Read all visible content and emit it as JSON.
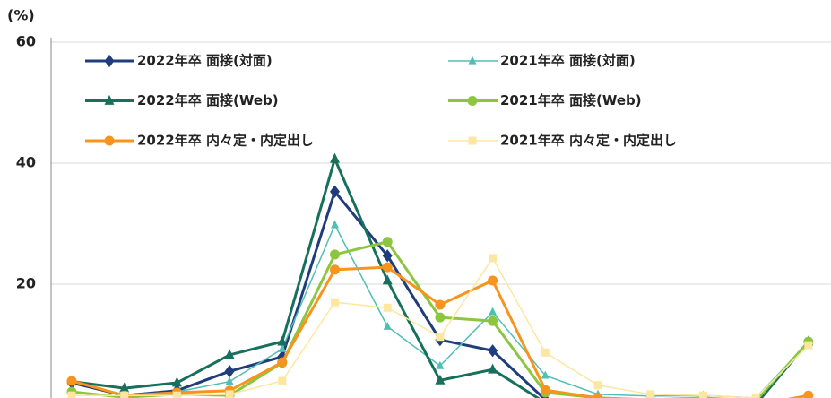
{
  "chart_data": {
    "type": "line",
    "y_label": "(%)",
    "categories": [
      null,
      null,
      null,
      null,
      null,
      null,
      null,
      null,
      null,
      null,
      null,
      null,
      null,
      null,
      null
    ],
    "ylim": [
      0,
      60
    ],
    "yticks": [
      20,
      40,
      60
    ],
    "grid": true,
    "legend": "top",
    "series": [
      {
        "name": "2022年卒 面接(対面)",
        "color": "#1f3d7a",
        "marker": "diamond",
        "width": 3,
        "values": [
          3.7,
          1.6,
          2.4,
          5.6,
          8,
          35.3,
          24.7,
          10.8,
          9,
          0.9,
          0.5,
          0.3,
          0.2,
          0.1,
          0.1
        ]
      },
      {
        "name": "2021年卒 面接(対面)",
        "color": "#4fbfb6",
        "marker": "triangle",
        "width": 1.5,
        "values": [
          1.6,
          1.6,
          2.2,
          3.9,
          9.3,
          29.8,
          13,
          6.5,
          15.4,
          4.9,
          1.8,
          1.5,
          1.6,
          1.2,
          10.4
        ]
      },
      {
        "name": "2022年卒 面接(Web)",
        "color": "#17705c",
        "marker": "triangle",
        "width": 3,
        "values": [
          3.9,
          2.8,
          3.7,
          8.3,
          10.5,
          40.7,
          20.6,
          4.1,
          5.9,
          0.4,
          0.3,
          0.3,
          0.4,
          0.1,
          10.5
        ]
      },
      {
        "name": "2021年卒 面接(Web)",
        "color": "#8cc63f",
        "marker": "circle",
        "width": 3,
        "values": [
          2.2,
          1.3,
          1.8,
          1.6,
          7,
          24.9,
          27,
          14.5,
          13.9,
          2.1,
          1.2,
          0.9,
          1.2,
          0.7,
          10.5
        ]
      },
      {
        "name": "2022年卒 内々定・内定出し",
        "color": "#f7941d",
        "marker": "circle",
        "width": 3,
        "values": [
          4,
          1.6,
          2.1,
          2.4,
          7.1,
          22.4,
          22.8,
          16.6,
          20.6,
          2.5,
          1.2,
          0,
          0,
          0,
          1.6
        ]
      },
      {
        "name": "2021年卒 内々定・内定出し",
        "color": "#fde7a0",
        "marker": "square",
        "width": 1.5,
        "values": [
          1.6,
          1.6,
          1.6,
          1.8,
          4,
          17,
          16.1,
          11.3,
          24.3,
          8.7,
          3.3,
          1.8,
          1.6,
          1.2,
          9.9
        ]
      }
    ]
  }
}
